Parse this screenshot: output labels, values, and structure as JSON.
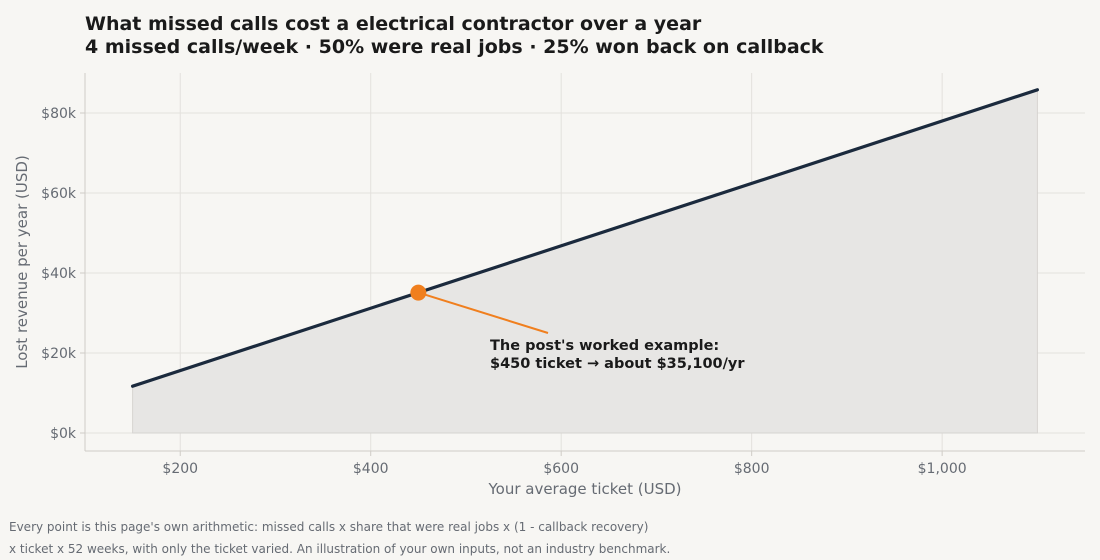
{
  "header": {
    "title": "What missed calls cost a electrical contractor over a year",
    "subtitle": "4 missed calls/week · 50% were real jobs · 25% won back on callback"
  },
  "footnote": {
    "line1": "Every point is this page's own arithmetic: missed calls x share that were real jobs x (1 - callback recovery)",
    "line2": "x ticket x 52 weeks, with only the ticket varied. An illustration of your own inputs, not an industry benchmark."
  },
  "colors": {
    "line": "#1b2a3d",
    "area": "#e7e6e4",
    "highlight": "#f07f1e",
    "grid": "#e3e1dd",
    "axis": "#cfccc7",
    "tick_text": "#666b73"
  },
  "chart_data": {
    "type": "line",
    "xlabel": "Your average ticket (USD)",
    "ylabel": "Lost revenue per year (USD)",
    "xlim": [
      100,
      1150
    ],
    "ylim": [
      -4500,
      90000
    ],
    "x_ticks": [
      200,
      400,
      600,
      800,
      1000
    ],
    "x_tick_labels": [
      "$200",
      "$400",
      "$600",
      "$800",
      "$1,000"
    ],
    "y_ticks": [
      0,
      20000,
      40000,
      60000,
      80000
    ],
    "y_tick_labels": [
      "$0k",
      "$20k",
      "$40k",
      "$60k",
      "$80k"
    ],
    "grid": true,
    "area_fill": true,
    "series": [
      {
        "x": [
          150,
          1100
        ],
        "y": [
          11700,
          85800
        ]
      }
    ],
    "highlight": {
      "x": 450,
      "y": 35100,
      "label_line1": "The post's worked example:",
      "label_line2": "$450 ticket → about $35,100/yr"
    }
  }
}
